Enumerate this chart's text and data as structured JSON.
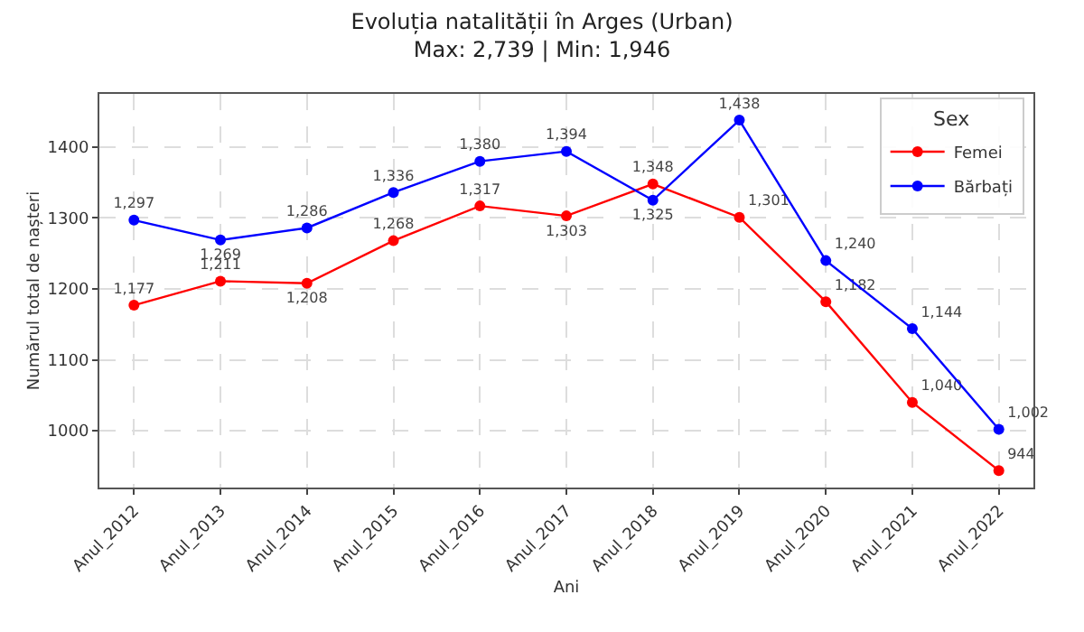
{
  "chart_data": {
    "type": "line",
    "title": "Evoluția natalității în Arges (Urban)",
    "subtitle": "Max: 2,739 | Min: 1,946",
    "xlabel": "Ani",
    "ylabel": "Numărul total de nașteri",
    "legend_title": "Sex",
    "categories": [
      "Anul_2012",
      "Anul_2013",
      "Anul_2014",
      "Anul_2015",
      "Anul_2016",
      "Anul_2017",
      "Anul_2018",
      "Anul_2019",
      "Anul_2020",
      "Anul_2021",
      "Anul_2022"
    ],
    "series": [
      {
        "name": "Femei",
        "color": "#ff0000",
        "values": [
          1177,
          1211,
          1208,
          1268,
          1317,
          1303,
          1348,
          1301,
          1182,
          1040,
          944
        ],
        "value_labels": [
          "1,177",
          "1,211",
          "1,208",
          "1,268",
          "1,317",
          "1,303",
          "1,348",
          "1,301",
          "1,182",
          "1,040",
          "944"
        ]
      },
      {
        "name": "Bărbați",
        "color": "#0000ff",
        "values": [
          1297,
          1269,
          1286,
          1336,
          1380,
          1394,
          1325,
          1438,
          1240,
          1144,
          1002
        ],
        "value_labels": [
          "1,297",
          "1,269",
          "1,286",
          "1,336",
          "1,380",
          "1,394",
          "1,325",
          "1,438",
          "1,240",
          "1,144",
          "1,002"
        ]
      }
    ],
    "ylim": [
      920,
      1475
    ],
    "yticks": [
      1000,
      1100,
      1200,
      1300,
      1400
    ],
    "grid": true,
    "legend": "top right",
    "marker": "circle",
    "line_style": "solid"
  }
}
